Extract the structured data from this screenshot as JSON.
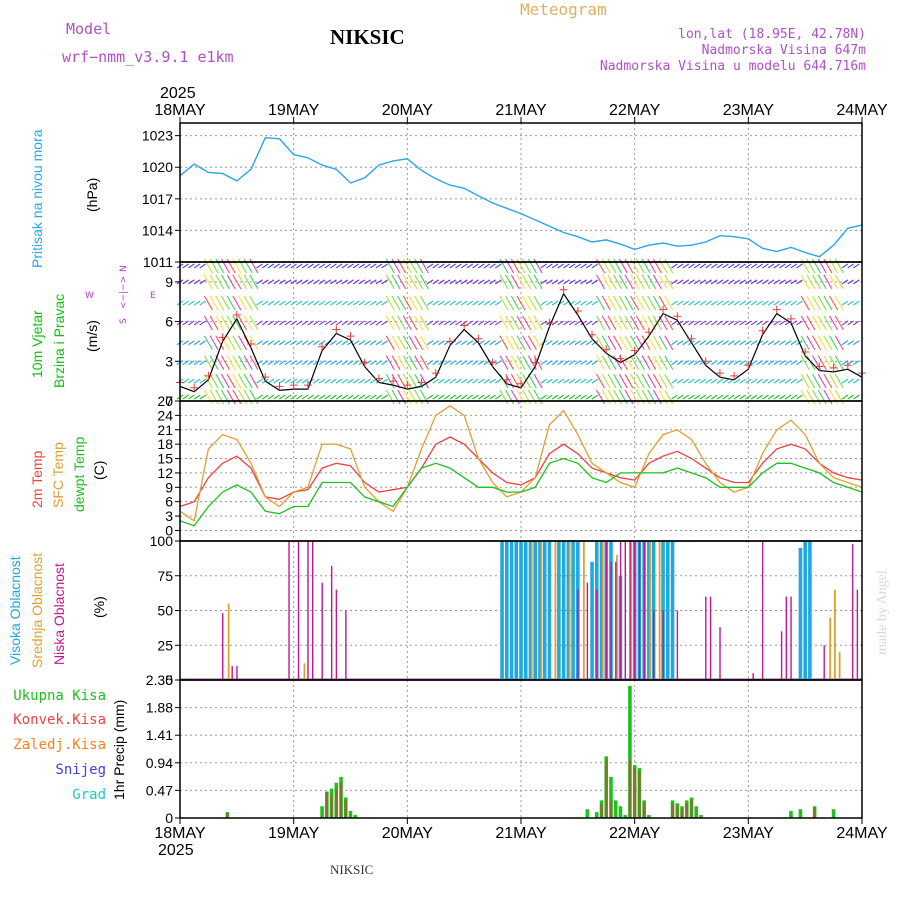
{
  "header": {
    "model_label": "Model",
    "model_name": "wrf−nmm_v3.9.1 e1km",
    "station": "NIKSIC",
    "product": "Meteogram",
    "lonlat": "lon,lat (18.95E, 42.78N)",
    "altitude": "Nadmorska Visina 647m",
    "model_altitude": "Nadmorska Visina u modelu 644.716m",
    "year": "2025",
    "footer_station": "NIKSIC",
    "credit": "made by Angel"
  },
  "colors": {
    "pressure": "#2aa7e8",
    "wind_label": "#10c010",
    "temp2m": "#f04040",
    "sfc": "#e0a030",
    "dewpt": "#20c020",
    "high_cloud": "#20a8e0",
    "mid_cloud": "#e0a030",
    "low_cloud": "#c01890",
    "precip_total": "#20c020",
    "precip_conv": "#f04040",
    "precip_frz": "#ff8020",
    "snow": "#4040e0",
    "hail": "#20c8c8",
    "dir_legend": "#b040c0",
    "model_text": "#b050c8",
    "product_text": "#e0b060"
  },
  "x_axis": {
    "days": [
      "18MAY",
      "19MAY",
      "20MAY",
      "21MAY",
      "22MAY",
      "23MAY",
      "24MAY"
    ],
    "year": "2025"
  },
  "wind_dir_legend": {
    "n": "N",
    "w": "W",
    "e": "E",
    "s": "S",
    "arrow": "<−|−>"
  },
  "chart_data": [
    {
      "type": "line",
      "name": "pressure",
      "ylabel": "Pritisak na nivou mora",
      "unit": "(hPa)",
      "yticks": [
        "1011",
        "1014",
        "1017",
        "1020",
        "1023"
      ],
      "ylim": [
        1011,
        1024.2
      ],
      "x_hours": [
        0,
        3,
        6,
        9,
        12,
        15,
        18,
        21,
        24,
        27,
        30,
        33,
        36,
        39,
        42,
        45,
        48,
        51,
        54,
        57,
        60,
        63,
        66,
        69,
        72,
        75,
        78,
        81,
        84,
        87,
        90,
        93,
        96,
        99,
        102,
        105,
        108,
        111,
        114,
        117,
        120,
        123,
        126,
        129,
        132,
        135,
        138,
        141,
        144
      ],
      "values": [
        1019.2,
        1020.3,
        1019.5,
        1019.4,
        1018.7,
        1019.8,
        1022.8,
        1022.7,
        1021.2,
        1020.9,
        1020.2,
        1019.8,
        1018.5,
        1019.0,
        1020.2,
        1020.6,
        1020.8,
        1019.7,
        1018.9,
        1018.3,
        1018.0,
        1017.3,
        1016.6,
        1016.1,
        1015.6,
        1015.0,
        1014.4,
        1013.8,
        1013.4,
        1012.9,
        1013.1,
        1012.7,
        1012.2,
        1012.6,
        1012.8,
        1012.5,
        1012.6,
        1012.9,
        1013.5,
        1013.4,
        1013.2,
        1012.3,
        1012.0,
        1012.4,
        1011.9,
        1011.5,
        1012.6,
        1014.2,
        1014.5
      ]
    },
    {
      "type": "line",
      "name": "wind",
      "ylabel": "10m Vjetar",
      "ylabel2": "Brzina i Pravac",
      "unit": "(m/s)",
      "yticks": [
        "0",
        "3",
        "6",
        "9"
      ],
      "ylim": [
        0,
        10.5
      ],
      "x_hours": [
        0,
        3,
        6,
        9,
        12,
        15,
        18,
        21,
        24,
        27,
        30,
        33,
        36,
        39,
        42,
        45,
        48,
        51,
        54,
        57,
        60,
        63,
        66,
        69,
        72,
        75,
        78,
        81,
        84,
        87,
        90,
        93,
        96,
        99,
        102,
        105,
        108,
        111,
        114,
        117,
        120,
        123,
        126,
        129,
        132,
        135,
        138,
        141,
        144
      ],
      "values": [
        1.1,
        0.7,
        1.6,
        4.5,
        6.2,
        4.0,
        1.5,
        0.8,
        0.9,
        0.9,
        3.8,
        5.1,
        4.6,
        2.6,
        1.4,
        1.2,
        0.9,
        1.1,
        1.8,
        4.2,
        5.4,
        4.4,
        2.6,
        1.3,
        1.0,
        2.6,
        5.6,
        8.1,
        6.5,
        4.7,
        3.6,
        2.9,
        3.5,
        4.9,
        6.6,
        6.1,
        4.4,
        2.7,
        1.8,
        1.6,
        2.4,
        5.0,
        6.6,
        5.9,
        3.4,
        2.3,
        2.2,
        2.4,
        1.8
      ]
    },
    {
      "type": "line",
      "name": "temperature",
      "ylabel": "2m Temp",
      "ylabel2": "SFC Temp",
      "ylabel3": "dewpt Temp",
      "unit": "(C)",
      "yticks": [
        "0",
        "3",
        "6",
        "9",
        "12",
        "15",
        "18",
        "21",
        "24",
        "27"
      ],
      "ylim": [
        -2.2,
        27
      ],
      "x_hours": [
        0,
        3,
        6,
        9,
        12,
        15,
        18,
        21,
        24,
        27,
        30,
        33,
        36,
        39,
        42,
        45,
        48,
        51,
        54,
        57,
        60,
        63,
        66,
        69,
        72,
        75,
        78,
        81,
        84,
        87,
        90,
        93,
        96,
        99,
        102,
        105,
        108,
        111,
        114,
        117,
        120,
        123,
        126,
        129,
        132,
        135,
        138,
        141,
        144
      ],
      "series": [
        {
          "name": "2m Temp",
          "values": [
            5,
            6,
            11,
            14,
            15.5,
            13,
            7,
            6.5,
            8,
            8.5,
            13,
            14,
            13.5,
            10,
            8,
            8.5,
            9,
            13,
            18,
            19.5,
            18,
            15,
            12,
            10,
            9.5,
            11,
            16,
            18,
            16,
            13,
            12,
            11,
            10.5,
            14,
            15.5,
            16.5,
            15,
            13,
            11,
            10,
            10,
            14,
            17,
            18,
            17,
            14,
            12,
            11,
            10.5
          ]
        },
        {
          "name": "SFC Temp",
          "values": [
            4,
            2,
            17,
            20,
            19,
            14,
            7,
            5,
            8,
            9,
            18,
            18,
            17,
            9,
            6,
            4,
            9,
            17,
            24,
            26,
            24,
            15,
            10,
            7,
            8,
            11,
            22,
            25,
            20,
            14,
            12,
            10,
            9,
            16,
            20,
            21,
            19,
            14,
            10,
            8,
            9,
            16,
            21,
            23,
            20,
            14,
            11,
            10,
            9
          ]
        },
        {
          "name": "dewpt Temp",
          "values": [
            2,
            1,
            5,
            8,
            9.5,
            8,
            4,
            3.5,
            5,
            5,
            10,
            10,
            10,
            7,
            6,
            5,
            9,
            13,
            14,
            13,
            11,
            9,
            9,
            8,
            8,
            9,
            14,
            15,
            14,
            11,
            10,
            12,
            12,
            12,
            12,
            13,
            12,
            11,
            9,
            9,
            9,
            12,
            14,
            14,
            13,
            12,
            10,
            9,
            8
          ]
        }
      ]
    },
    {
      "type": "bar",
      "name": "cloud",
      "ylabel": "Visoka Oblacnost",
      "ylabel2": "Srednja Oblacnost",
      "ylabel3": "Niska Oblacnost",
      "unit": "(%)",
      "yticks": [
        "0",
        "25",
        "50",
        "75",
        "100"
      ],
      "ylim": [
        0,
        100
      ],
      "high": [
        [
          68,
          100
        ],
        [
          69,
          100
        ],
        [
          70,
          100
        ],
        [
          71,
          100
        ],
        [
          72,
          100
        ],
        [
          73,
          100
        ],
        [
          74,
          100
        ],
        [
          75,
          100
        ],
        [
          76,
          100
        ],
        [
          77,
          100
        ],
        [
          78,
          100
        ],
        [
          80,
          100
        ],
        [
          81,
          100
        ],
        [
          82,
          100
        ],
        [
          83,
          100
        ],
        [
          84,
          100
        ],
        [
          87,
          85
        ],
        [
          88,
          100
        ],
        [
          89,
          100
        ],
        [
          90,
          100
        ],
        [
          91,
          100
        ],
        [
          93,
          75
        ],
        [
          96,
          100
        ],
        [
          97,
          100
        ],
        [
          98,
          100
        ],
        [
          99,
          100
        ],
        [
          100,
          100
        ],
        [
          102,
          100
        ],
        [
          103,
          100
        ],
        [
          104,
          100
        ],
        [
          131,
          95
        ],
        [
          132,
          100
        ],
        [
          133,
          100
        ]
      ],
      "mid": [
        [
          10,
          55
        ],
        [
          26,
          12
        ],
        [
          74,
          100
        ],
        [
          76,
          100
        ],
        [
          79,
          100
        ],
        [
          82,
          100
        ],
        [
          85,
          100
        ],
        [
          89,
          100
        ],
        [
          92,
          90
        ],
        [
          95,
          100
        ],
        [
          99,
          100
        ],
        [
          101,
          100
        ],
        [
          137,
          45
        ],
        [
          138,
          65
        ],
        [
          139,
          20
        ]
      ],
      "low": [
        [
          9,
          48
        ],
        [
          11,
          10
        ],
        [
          12,
          10
        ],
        [
          23,
          100
        ],
        [
          25,
          100
        ],
        [
          27,
          100
        ],
        [
          28,
          100
        ],
        [
          30,
          70
        ],
        [
          32,
          82
        ],
        [
          33,
          65
        ],
        [
          35,
          50
        ],
        [
          84,
          65
        ],
        [
          86,
          70
        ],
        [
          88,
          65
        ],
        [
          90,
          100
        ],
        [
          91,
          85
        ],
        [
          92,
          85
        ],
        [
          93,
          100
        ],
        [
          94,
          100
        ],
        [
          95,
          100
        ],
        [
          96,
          100
        ],
        [
          97,
          100
        ],
        [
          98,
          100
        ],
        [
          100,
          50
        ],
        [
          102,
          50
        ],
        [
          105,
          50
        ],
        [
          111,
          60
        ],
        [
          112,
          60
        ],
        [
          114,
          38
        ],
        [
          121,
          5
        ],
        [
          123,
          100
        ],
        [
          127,
          35
        ],
        [
          128,
          60
        ],
        [
          129,
          60
        ],
        [
          136,
          25
        ],
        [
          142,
          98
        ],
        [
          143,
          65
        ]
      ]
    },
    {
      "type": "bar",
      "name": "precip",
      "ylabel": "Ukupna Kisa",
      "ylabel2": "Konvek.Kisa",
      "ylabel3": "Zaledj.Kisa",
      "ylabel4": "Snijeg",
      "ylabel5": "Grad",
      "unit": "1hr Precip (mm)",
      "yticks": [
        "0",
        "0.47",
        "0.94",
        "1.41",
        "1.88",
        "2.35"
      ],
      "ylim": [
        0,
        2.35
      ],
      "total": [
        [
          10,
          0.1
        ],
        [
          30,
          0.2
        ],
        [
          31,
          0.45
        ],
        [
          32,
          0.5
        ],
        [
          33,
          0.6
        ],
        [
          34,
          0.7
        ],
        [
          35,
          0.35
        ],
        [
          36,
          0.12
        ],
        [
          37,
          0.05
        ],
        [
          86,
          0.15
        ],
        [
          88,
          0.1
        ],
        [
          89,
          0.3
        ],
        [
          90,
          1.05
        ],
        [
          91,
          0.7
        ],
        [
          92,
          0.3
        ],
        [
          93,
          0.2
        ],
        [
          94,
          0.05
        ],
        [
          95,
          2.25
        ],
        [
          96,
          0.9
        ],
        [
          97,
          0.85
        ],
        [
          98,
          0.3
        ],
        [
          99,
          0.05
        ],
        [
          104,
          0.3
        ],
        [
          105,
          0.25
        ],
        [
          106,
          0.2
        ],
        [
          107,
          0.3
        ],
        [
          108,
          0.35
        ],
        [
          109,
          0.2
        ],
        [
          110,
          0.05
        ],
        [
          129,
          0.12
        ],
        [
          131,
          0.15
        ],
        [
          134,
          0.2
        ],
        [
          138,
          0.15
        ]
      ],
      "convective": [
        [
          10,
          0.08
        ],
        [
          31,
          0.45
        ],
        [
          32,
          0.4
        ],
        [
          33,
          0.5
        ],
        [
          34,
          0.6
        ],
        [
          35,
          0.3
        ],
        [
          89,
          0.25
        ],
        [
          90,
          0.98
        ],
        [
          91,
          0.3
        ],
        [
          95,
          1.0
        ],
        [
          96,
          0.85
        ],
        [
          97,
          0.8
        ],
        [
          98,
          0.25
        ],
        [
          104,
          0.25
        ],
        [
          105,
          0.2
        ],
        [
          106,
          0.15
        ],
        [
          107,
          0.25
        ],
        [
          108,
          0.3
        ],
        [
          134,
          0.18
        ]
      ]
    }
  ]
}
